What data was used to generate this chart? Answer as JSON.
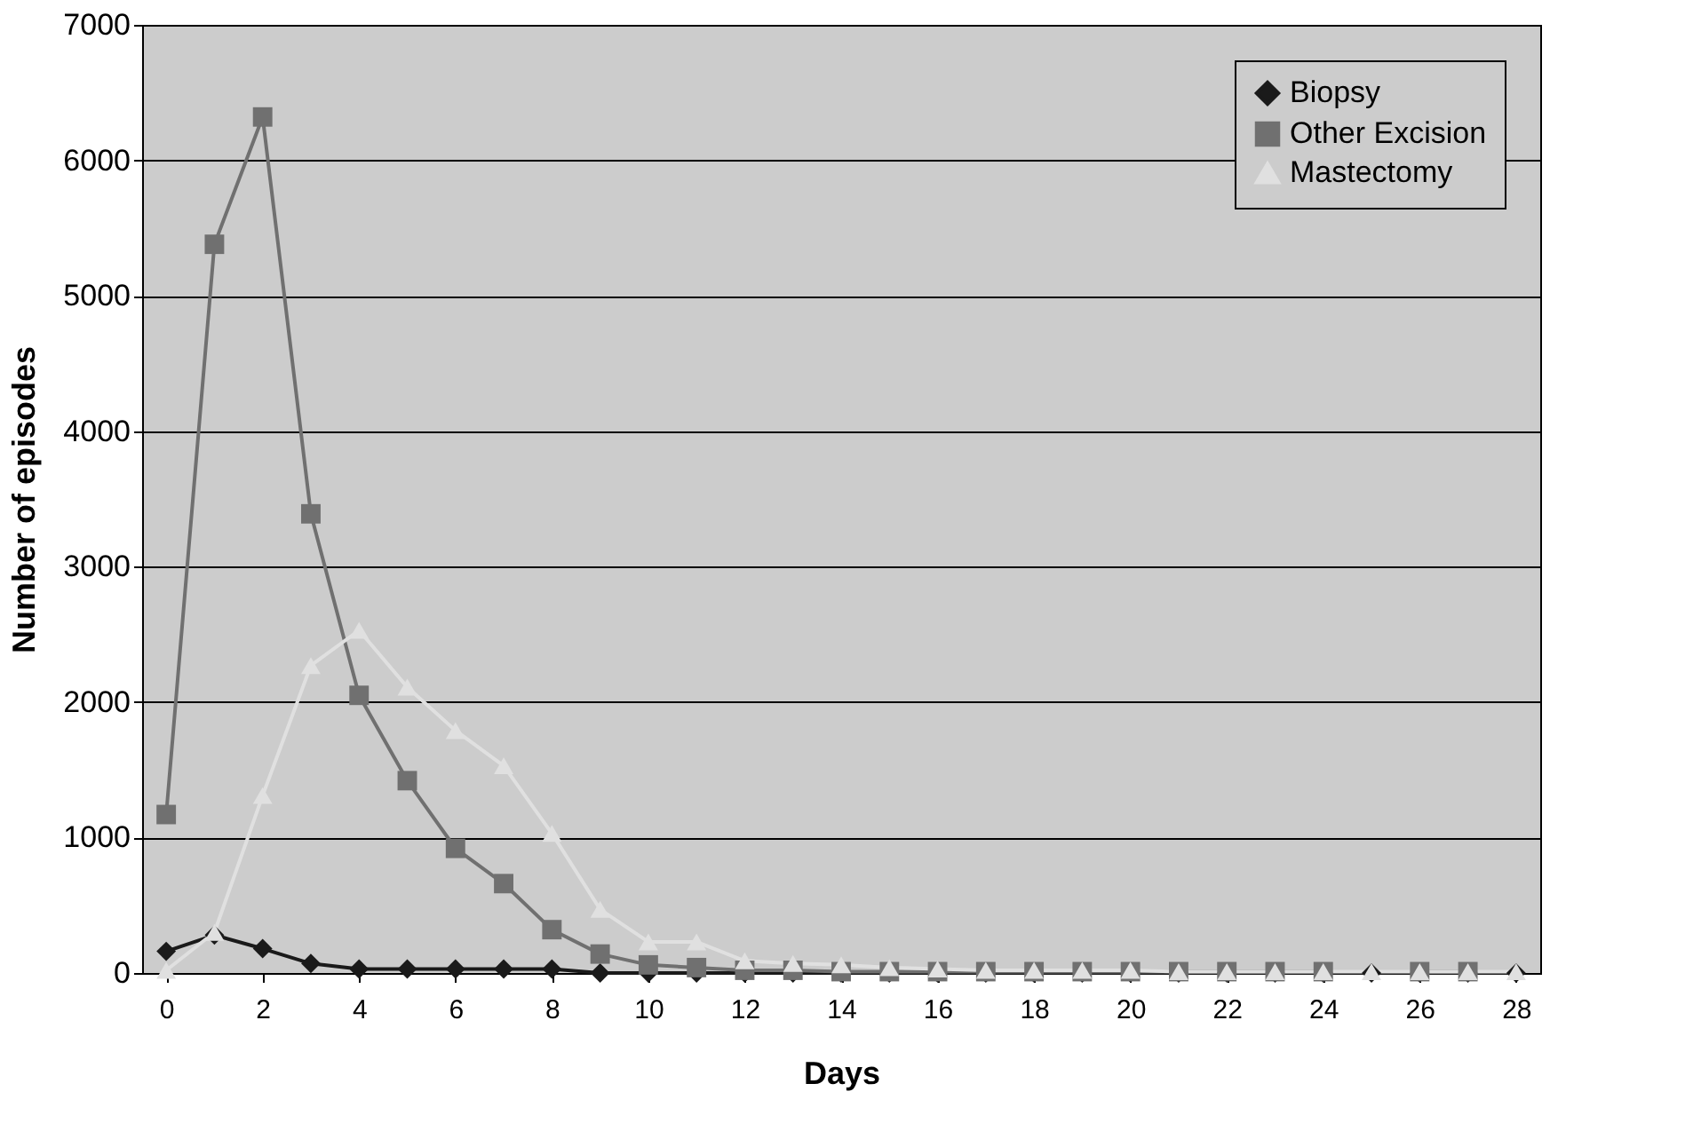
{
  "chart_data": {
    "type": "line",
    "xlabel": "Days",
    "ylabel": "Number of episodes",
    "x": [
      0,
      1,
      2,
      3,
      4,
      5,
      6,
      7,
      8,
      9,
      10,
      11,
      12,
      13,
      14,
      15,
      16,
      17,
      18,
      19,
      20,
      21,
      22,
      23,
      24,
      25,
      26,
      27,
      28
    ],
    "xlim": [
      -0.5,
      28.5
    ],
    "xticks": [
      0,
      2,
      4,
      6,
      8,
      10,
      12,
      14,
      16,
      18,
      20,
      22,
      24,
      26,
      28
    ],
    "ylim": [
      0,
      7000
    ],
    "yticks": [
      0,
      1000,
      2000,
      3000,
      4000,
      5000,
      6000,
      7000
    ],
    "grid": "y",
    "legend": "top right",
    "series": [
      {
        "name": "Biopsy",
        "color": "#1a1a1a",
        "marker": "diamond",
        "values": [
          160,
          280,
          180,
          70,
          30,
          30,
          30,
          30,
          30,
          0,
          0,
          0,
          0,
          0,
          0,
          0,
          0,
          0,
          0,
          0,
          0,
          0,
          0,
          0,
          0,
          0,
          0,
          0,
          0
        ]
      },
      {
        "name": "Other Excision",
        "color": "#707070",
        "marker": "square",
        "values": [
          1170,
          5380,
          6320,
          3390,
          2050,
          1420,
          920,
          660,
          320,
          140,
          60,
          40,
          20,
          20,
          10,
          10,
          10,
          10,
          10,
          10,
          10,
          10,
          10,
          10,
          10,
          null,
          10,
          10,
          null
        ]
      },
      {
        "name": "Mastectomy",
        "color": "#e0e0e0",
        "marker": "triangle",
        "values": [
          20,
          300,
          1310,
          2270,
          2530,
          2110,
          1790,
          1530,
          1030,
          470,
          230,
          230,
          90,
          70,
          60,
          40,
          30,
          20,
          20,
          20,
          20,
          10,
          10,
          10,
          10,
          10,
          10,
          10,
          10
        ]
      }
    ]
  }
}
